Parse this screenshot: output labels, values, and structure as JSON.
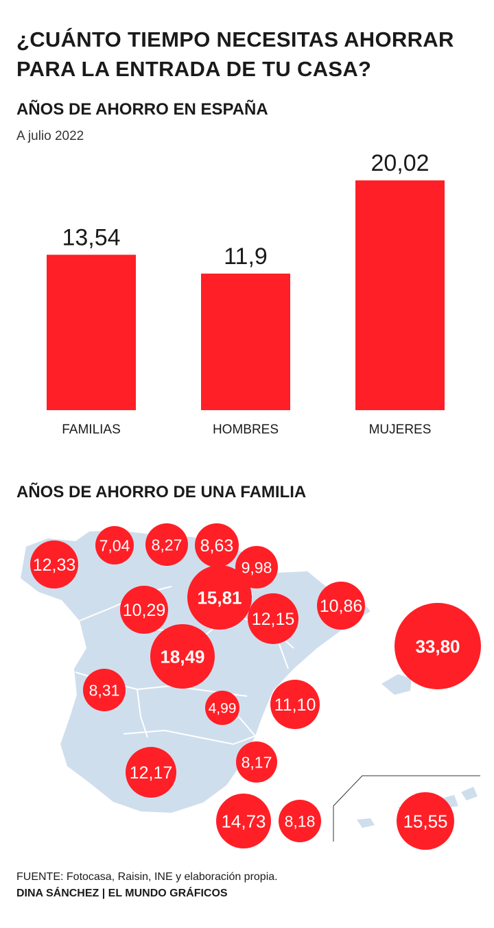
{
  "title": "¿CUÁNTO TIEMPO NECESITAS AHORRAR PARA LA ENTRADA DE TU CASA?",
  "colors": {
    "accent": "#ff1f26",
    "map_fill": "#cfdeed",
    "map_line": "#ffffff",
    "text": "#1a1a1a"
  },
  "chart_data": [
    {
      "type": "bar",
      "title": "AÑOS DE AHORRO EN ESPAÑA",
      "subtitle": "A julio 2022",
      "categories": [
        "FAMILIAS",
        "HOMBRES",
        "MUJERES"
      ],
      "values": [
        13.54,
        11.9,
        20.02
      ],
      "value_labels": [
        "13,54",
        "11,9",
        "20,02"
      ],
      "xlabel": "",
      "ylabel": "",
      "ylim": [
        0,
        20.02
      ],
      "grid": false
    },
    {
      "type": "bubble-map",
      "title": "AÑOS DE AHORRO DE UNA FAMILIA",
      "regions": [
        {
          "name": "Galicia",
          "label": "12,33",
          "value": 12.33
        },
        {
          "name": "Asturias",
          "label": "7,04",
          "value": 7.04
        },
        {
          "name": "Cantabria",
          "label": "8,27",
          "value": 8.27
        },
        {
          "name": "País Vasco",
          "label": "8,63",
          "value": 8.63
        },
        {
          "name": "Navarra",
          "label": "9,98",
          "value": 9.98
        },
        {
          "name": "La Rioja",
          "label": "15,81",
          "value": 15.81
        },
        {
          "name": "Castilla y León",
          "label": "10,29",
          "value": 10.29
        },
        {
          "name": "Aragón",
          "label": "12,15",
          "value": 12.15
        },
        {
          "name": "Cataluña",
          "label": "10,86",
          "value": 10.86
        },
        {
          "name": "Baleares",
          "label": "33,80",
          "value": 33.8
        },
        {
          "name": "Madrid",
          "label": "18,49",
          "value": 18.49
        },
        {
          "name": "Extremadura",
          "label": "8,31",
          "value": 8.31
        },
        {
          "name": "Castilla-La Mancha",
          "label": "4,99",
          "value": 4.99
        },
        {
          "name": "C. Valenciana",
          "label": "11,10",
          "value": 11.1
        },
        {
          "name": "Murcia",
          "label": "8,17",
          "value": 8.17
        },
        {
          "name": "Andalucía",
          "label": "12,17",
          "value": 12.17
        },
        {
          "name": "Ceuta",
          "label": "14,73",
          "value": 14.73
        },
        {
          "name": "Melilla",
          "label": "8,18",
          "value": 8.18
        },
        {
          "name": "Canarias",
          "label": "15,55",
          "value": 15.55
        }
      ]
    }
  ],
  "footer": {
    "source": "FUENTE: Fotocasa, Raisin, INE y elaboración propia.",
    "credit": "DINA SÁNCHEZ | EL MUNDO GRÁFICOS"
  }
}
